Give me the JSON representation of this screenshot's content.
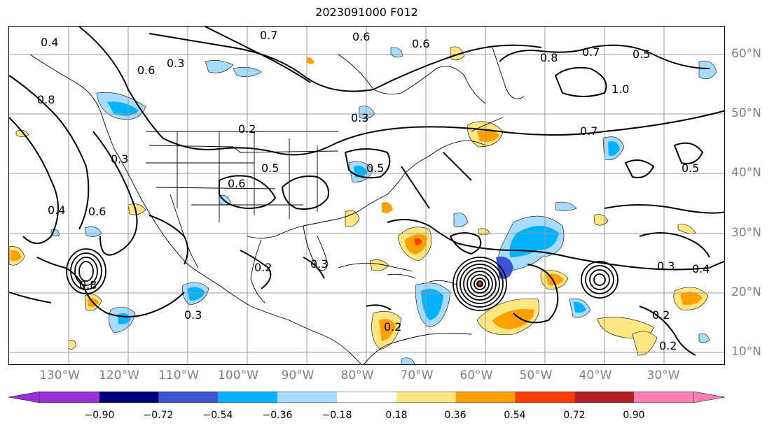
{
  "title": "2023091000 F012",
  "lon_labels": [
    "130°W",
    "120°W",
    "110°W",
    "100°W",
    "90°W",
    "80°W",
    "70°W",
    "60°W",
    "50°W",
    "40°W",
    "30°W"
  ],
  "lat_labels": [
    "60°N",
    "50°N",
    "40°N",
    "30°N",
    "20°N",
    "10°N"
  ],
  "contour_labels": [
    "0.4",
    "0.7",
    "0.6",
    "0.6",
    "0.8",
    "0.5",
    "1.0",
    "0.3",
    "0.2",
    "0.3",
    "0.6",
    "0.5",
    "0.7",
    "0.5",
    "0.4",
    "0.6",
    "0.3",
    "0.2",
    "0.3",
    "0.3",
    "0.2",
    "0.3",
    "0.4",
    "0.2",
    "0.2",
    "0.5",
    "0.6",
    "0.8",
    "0.7",
    "0.8"
  ],
  "colorbar": {
    "colors": [
      "#9b30d9",
      "#000080",
      "#3a54d4",
      "#00b2ff",
      "#a7dcff",
      "#ffffff",
      "#ffe680",
      "#ffa000",
      "#ff3b00",
      "#b22222",
      "#ff80b0"
    ],
    "ticks": [
      "−0.90",
      "−0.72",
      "−0.54",
      "−0.36",
      "−0.18",
      "0.18",
      "0.36",
      "0.54",
      "0.72",
      "0.90"
    ]
  },
  "colors": {
    "map_background": "#ffffff",
    "grid": "#999999",
    "contour": "#000000",
    "axis_label": "#808080"
  }
}
